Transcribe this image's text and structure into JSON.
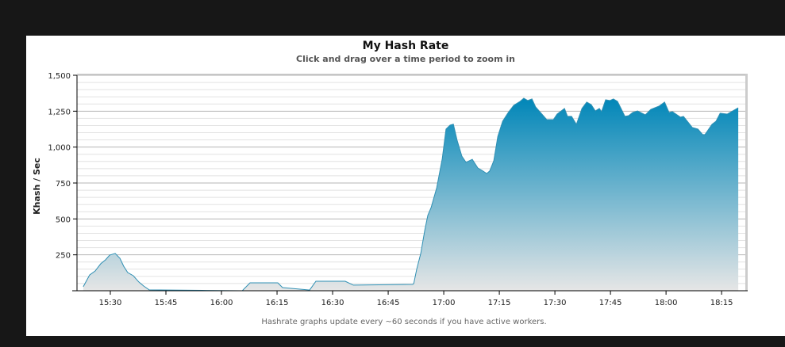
{
  "chart_data": {
    "type": "area",
    "title": "My Hash Rate",
    "subtitle": "Click and drag over a time period to zoom in",
    "xlabel": "",
    "ylabel": "Khash / Sec",
    "x_unit": "minutes after 15:00",
    "xlim": [
      21.0,
      201.4
    ],
    "ylim": [
      0,
      1500
    ],
    "grid": true,
    "legend": "none",
    "yticks": [
      {
        "v": 0,
        "label": ""
      },
      {
        "v": 250,
        "label": "250"
      },
      {
        "v": 500,
        "label": "500"
      },
      {
        "v": 750,
        "label": "750"
      },
      {
        "v": 1000,
        "label": "1,000"
      },
      {
        "v": 1250,
        "label": "1,250"
      },
      {
        "v": 1500,
        "label": "1,500"
      }
    ],
    "xticks": [
      {
        "v": 30,
        "label": "15:30"
      },
      {
        "v": 45,
        "label": "15:45"
      },
      {
        "v": 60,
        "label": "16:00"
      },
      {
        "v": 75,
        "label": "16:15"
      },
      {
        "v": 90,
        "label": "16:30"
      },
      {
        "v": 105,
        "label": "16:45"
      },
      {
        "v": 120,
        "label": "17:00"
      },
      {
        "v": 135,
        "label": "17:15"
      },
      {
        "v": 150,
        "label": "17:30"
      },
      {
        "v": 165,
        "label": "17:45"
      },
      {
        "v": 180,
        "label": "18:00"
      },
      {
        "v": 195,
        "label": "18:15"
      }
    ],
    "x": [
      22.7,
      24.4,
      25.9,
      27.4,
      28.7,
      29.8,
      31.3,
      32.6,
      33.6,
      34.7,
      36.2,
      37.7,
      39.0,
      40.5,
      55.9,
      65.6,
      67.7,
      75.2,
      76.5,
      83.8,
      85.5,
      93.4,
      95.6,
      111.6,
      111.9,
      112.7,
      113.8,
      114.9,
      115.7,
      116.6,
      118.1,
      119.6,
      120.6,
      121.7,
      122.6,
      123.6,
      124.9,
      126.0,
      127.7,
      129.2,
      130.3,
      131.6,
      132.4,
      133.5,
      134.6,
      135.9,
      137.4,
      138.9,
      140.6,
      141.6,
      142.7,
      143.8,
      144.8,
      146.3,
      147.8,
      149.6,
      150.6,
      152.6,
      153.4,
      154.5,
      155.8,
      157.3,
      158.6,
      159.8,
      160.9,
      162.0,
      162.6,
      163.7,
      164.8,
      165.8,
      166.9,
      168.9,
      169.9,
      171.0,
      172.3,
      174.4,
      175.9,
      178.1,
      179.6,
      180.8,
      181.7,
      183.9,
      184.7,
      187.1,
      188.6,
      189.9,
      190.5,
      192.4,
      193.5,
      194.6,
      196.5,
      199.5
    ],
    "values": [
      28,
      110,
      138,
      188,
      215,
      248,
      260,
      226,
      171,
      127,
      105,
      61,
      33,
      6,
      2,
      0,
      55,
      55,
      22,
      5,
      66,
      66,
      39,
      44,
      50,
      150,
      260,
      425,
      525,
      580,
      717,
      920,
      1125,
      1153,
      1160,
      1048,
      937,
      894,
      915,
      855,
      838,
      816,
      833,
      905,
      1075,
      1180,
      1241,
      1291,
      1318,
      1340,
      1324,
      1335,
      1280,
      1236,
      1191,
      1191,
      1230,
      1269,
      1214,
      1214,
      1158,
      1269,
      1313,
      1296,
      1252,
      1269,
      1247,
      1329,
      1324,
      1335,
      1318,
      1214,
      1219,
      1241,
      1252,
      1224,
      1263,
      1285,
      1313,
      1241,
      1247,
      1208,
      1214,
      1136,
      1125,
      1087,
      1087,
      1158,
      1180,
      1236,
      1230,
      1274
    ],
    "line_color": "#2f8fb3",
    "fill_top_color": "#0086b8",
    "fill_bottom_color": "#e6e6e6",
    "footnote": "Hashrate graphs update every ~60 seconds if you have active workers."
  }
}
